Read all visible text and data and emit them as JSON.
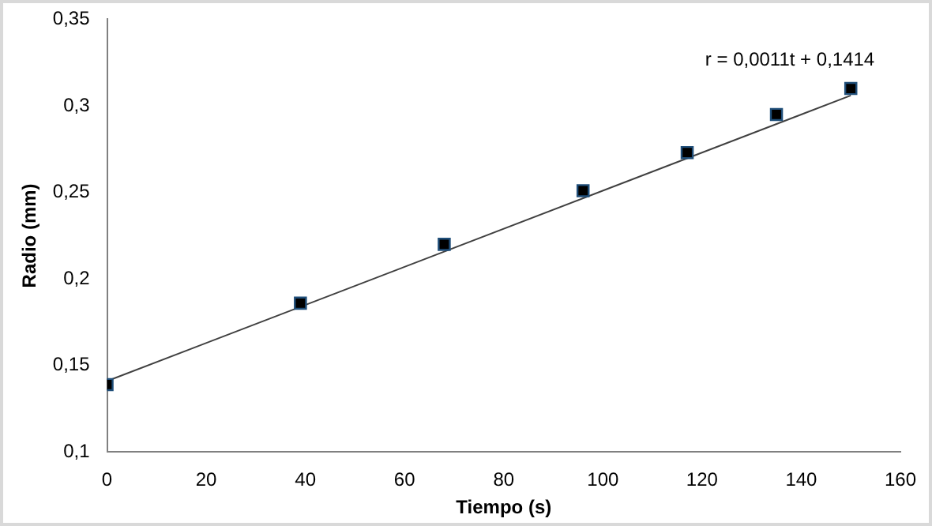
{
  "chart_data": {
    "type": "scatter",
    "xlabel": "Tiempo (s)",
    "ylabel": "Radio (mm)",
    "x": [
      0,
      39,
      68,
      96,
      117,
      135,
      150
    ],
    "series": [
      {
        "marker": "square",
        "color": "#000000",
        "values": [
          0.139,
          0.186,
          0.22,
          0.251,
          0.273,
          0.295,
          0.31
        ]
      },
      {
        "type": "line",
        "marker": "none",
        "color": "#404040",
        "x": [
          0,
          150
        ],
        "values": [
          0.141,
          0.306
        ]
      }
    ],
    "xlim": [
      0,
      160
    ],
    "xticks": [
      0,
      20,
      40,
      60,
      80,
      100,
      120,
      140,
      160
    ],
    "ylim": [
      0.1,
      0.35
    ],
    "yticks": [
      {
        "value": 0.1,
        "label": "0,1"
      },
      {
        "value": 0.15,
        "label": "0,15"
      },
      {
        "value": 0.2,
        "label": "0,2"
      },
      {
        "value": 0.25,
        "label": "0,25"
      },
      {
        "value": 0.3,
        "label": "0,3"
      },
      {
        "value": 0.35,
        "label": "0,35"
      }
    ],
    "annotations": [
      "r = 0,0011t + 0,1414"
    ],
    "grid": false,
    "legend": false
  }
}
